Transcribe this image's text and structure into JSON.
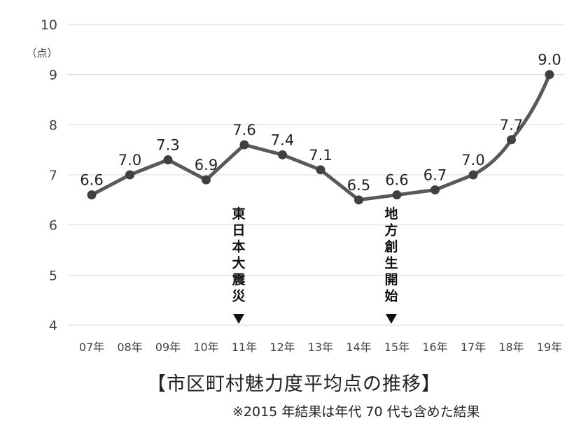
{
  "chart_data": {
    "type": "line",
    "title": "【市区町村魅力度平均点の推移】",
    "note": "※2015 年結果は年代 70 代も含めた結果",
    "ylabel": "（点）",
    "ylim": [
      4,
      10
    ],
    "yticks": [
      4,
      5,
      6,
      7,
      8,
      9,
      10
    ],
    "grid": true,
    "categories": [
      "07年",
      "08年",
      "09年",
      "10年",
      "11年",
      "12年",
      "13年",
      "14年",
      "15年",
      "16年",
      "17年",
      "18年",
      "19年"
    ],
    "values": [
      6.6,
      7.0,
      7.3,
      6.9,
      7.6,
      7.4,
      7.1,
      6.5,
      6.6,
      6.7,
      7.0,
      7.7,
      9.0
    ],
    "value_labels": [
      "6.6",
      "7.0",
      "7.3",
      "6.9",
      "7.6",
      "7.4",
      "7.1",
      "6.5",
      "6.6",
      "6.7",
      "7.0",
      "7.7",
      "9.0"
    ],
    "annotations": [
      {
        "category": "11年",
        "text": "東日本大震災"
      },
      {
        "category": "15年",
        "text": "地方創生開始"
      }
    ],
    "colors": {
      "line": "#595959",
      "marker": "#404040",
      "grid": "#d9d9d9",
      "text": "#404040"
    }
  }
}
